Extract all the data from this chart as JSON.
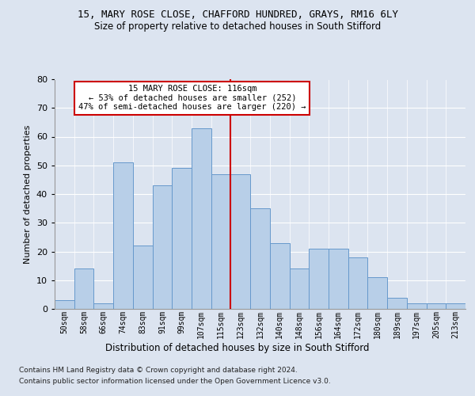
{
  "title1": "15, MARY ROSE CLOSE, CHAFFORD HUNDRED, GRAYS, RM16 6LY",
  "title2": "Size of property relative to detached houses in South Stifford",
  "xlabel": "Distribution of detached houses by size in South Stifford",
  "ylabel": "Number of detached properties",
  "footnote1": "Contains HM Land Registry data © Crown copyright and database right 2024.",
  "footnote2": "Contains public sector information licensed under the Open Government Licence v3.0.",
  "bar_labels": [
    "50sqm",
    "58sqm",
    "66sqm",
    "74sqm",
    "83sqm",
    "91sqm",
    "99sqm",
    "107sqm",
    "115sqm",
    "123sqm",
    "132sqm",
    "140sqm",
    "148sqm",
    "156sqm",
    "164sqm",
    "172sqm",
    "180sqm",
    "189sqm",
    "197sqm",
    "205sqm",
    "213sqm"
  ],
  "bar_values": [
    3,
    14,
    2,
    51,
    22,
    43,
    49,
    63,
    47,
    47,
    35,
    23,
    14,
    21,
    21,
    18,
    11,
    4,
    2,
    2,
    2
  ],
  "bar_color": "#b8cfe8",
  "bar_edgecolor": "#6699cc",
  "ylim": [
    0,
    80
  ],
  "yticks": [
    0,
    10,
    20,
    30,
    40,
    50,
    60,
    70,
    80
  ],
  "vline_idx": 8,
  "annotation_title": "15 MARY ROSE CLOSE: 116sqm",
  "annotation_line1": "← 53% of detached houses are smaller (252)",
  "annotation_line2": "47% of semi-detached houses are larger (220) →",
  "annotation_border_color": "#cc0000",
  "bg_color": "#dce4f0",
  "grid_color": "#ffffff",
  "title1_fontsize": 9,
  "title2_fontsize": 8.5,
  "xlabel_fontsize": 8.5,
  "ylabel_fontsize": 8,
  "footnote_fontsize": 6.5
}
